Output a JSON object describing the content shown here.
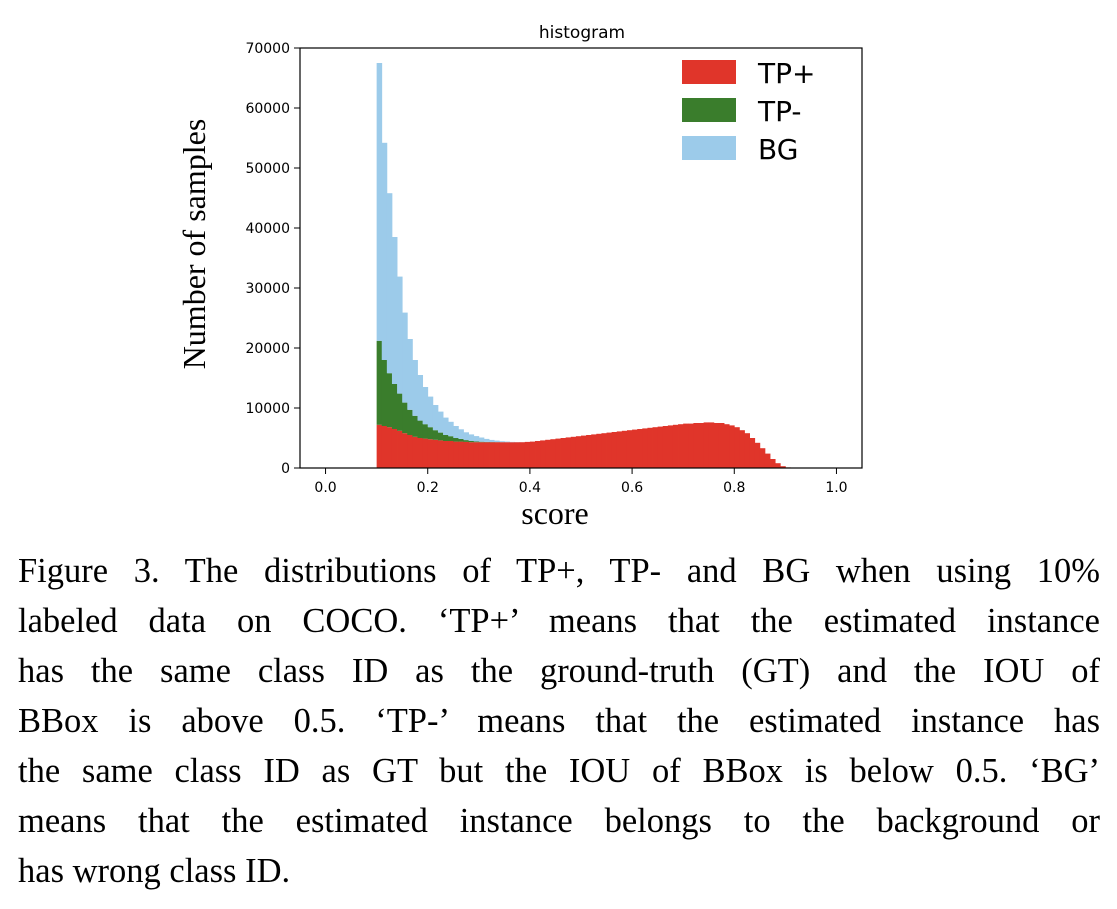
{
  "chart_data": {
    "type": "bar",
    "title": "histogram",
    "xlabel": "score",
    "ylabel": "Number of samples",
    "xlim": [
      -0.05,
      1.05
    ],
    "ylim": [
      0,
      70000
    ],
    "xticks": [
      "0.0",
      "0.2",
      "0.4",
      "0.6",
      "0.8",
      "1.0"
    ],
    "yticks": [
      "0",
      "10000",
      "20000",
      "30000",
      "40000",
      "50000",
      "60000",
      "70000"
    ],
    "legend_position": "top-right",
    "stacked": true,
    "bin_width": 0.01,
    "bin_start": 0.1,
    "series": [
      {
        "name": "TP+",
        "color": "#e0352a",
        "values": [
          7200,
          7000,
          6800,
          6500,
          6200,
          5800,
          5500,
          5200,
          5000,
          4900,
          4800,
          4700,
          4600,
          4500,
          4500,
          4400,
          4400,
          4350,
          4300,
          4300,
          4300,
          4300,
          4300,
          4300,
          4300,
          4300,
          4300,
          4300,
          4300,
          4350,
          4400,
          4500,
          4600,
          4700,
          4800,
          4900,
          5000,
          5100,
          5200,
          5300,
          5400,
          5500,
          5600,
          5700,
          5800,
          5900,
          6000,
          6100,
          6200,
          6300,
          6400,
          6500,
          6600,
          6700,
          6800,
          6900,
          7000,
          7100,
          7200,
          7300,
          7400,
          7400,
          7500,
          7500,
          7600,
          7600,
          7500,
          7500,
          7300,
          7100,
          6800,
          6300,
          5800,
          5000,
          4200,
          3300,
          2400,
          1500,
          800,
          300,
          100,
          0
        ]
      },
      {
        "name": "TP-",
        "color": "#3a7d2c",
        "values": [
          14000,
          11000,
          9000,
          7500,
          6200,
          5100,
          4200,
          3500,
          2900,
          2400,
          2000,
          1600,
          1300,
          1000,
          800,
          600,
          450,
          300,
          200,
          120,
          80,
          50,
          30,
          20,
          10,
          5,
          0,
          0,
          0,
          0,
          0,
          0,
          0,
          0,
          0,
          0,
          0,
          0,
          0,
          0,
          0,
          0,
          0,
          0,
          0,
          0,
          0,
          0,
          0,
          0,
          0,
          0,
          0,
          0,
          0,
          0,
          0,
          0,
          0,
          0,
          0,
          0,
          0,
          0,
          0,
          0,
          0,
          0,
          0,
          0,
          0,
          0,
          0,
          0,
          0,
          0,
          0,
          0,
          0,
          0,
          0,
          0
        ]
      },
      {
        "name": "BG",
        "color": "#9ccbea",
        "values": [
          46300,
          36200,
          30000,
          24500,
          19500,
          15000,
          11800,
          9300,
          7600,
          6200,
          5100,
          4200,
          3500,
          2900,
          2400,
          2000,
          1600,
          1300,
          1100,
          900,
          700,
          500,
          350,
          250,
          150,
          100,
          50,
          20,
          10,
          0,
          0,
          0,
          0,
          0,
          0,
          0,
          0,
          0,
          0,
          0,
          0,
          0,
          0,
          0,
          0,
          0,
          0,
          0,
          0,
          0,
          0,
          0,
          0,
          0,
          0,
          0,
          0,
          0,
          0,
          0,
          0,
          0,
          0,
          0,
          0,
          0,
          0,
          0,
          0,
          0,
          0,
          0,
          0,
          0,
          0,
          0,
          0,
          0,
          0,
          0,
          0,
          0
        ]
      }
    ]
  },
  "caption": {
    "lines": [
      "Figure 3. The distributions of TP+, TP- and BG when using 10%",
      "labeled data on COCO. ‘TP+’ means that the estimated instance",
      "has the same class ID as the ground-truth (GT) and the IOU of",
      "BBox is above 0.5.  ‘TP-’ means that the estimated instance has",
      "the same class ID as GT but the IOU of BBox is below 0.5. ‘BG’",
      "means that the estimated instance belongs to the background or",
      "has wrong class ID."
    ]
  }
}
